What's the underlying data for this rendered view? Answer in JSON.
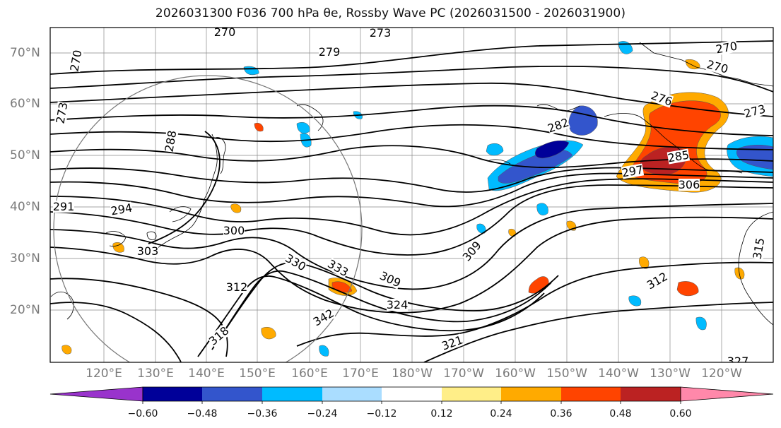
{
  "title": "2026031300 F036 700 hPa θe, Rossby Wave PC (2026031500 - 2026031900)",
  "map": {
    "lat_ticks": [
      "70°N",
      "60°N",
      "50°N",
      "40°N",
      "30°N",
      "20°N"
    ],
    "lon_ticks": [
      "120°E",
      "130°E",
      "140°E",
      "150°E",
      "160°E",
      "170°E",
      "180°W",
      "170°W",
      "160°W",
      "150°W",
      "140°W",
      "130°W",
      "120°W"
    ],
    "contour_labels": [
      "270",
      "273",
      "270",
      "279",
      "270",
      "270",
      "276",
      "273",
      "273",
      "288",
      "282",
      "285",
      "291",
      "294",
      "297",
      "300",
      "303",
      "306",
      "309",
      "309",
      "312",
      "312",
      "315",
      "318",
      "321",
      "324",
      "327",
      "330",
      "333",
      "342"
    ]
  },
  "colorbar": {
    "colors": [
      "#9933cc",
      "#000099",
      "#3355cc",
      "#00bbff",
      "#aaddff",
      "#ffffff",
      "#ffee88",
      "#ffaa00",
      "#ff4400",
      "#bb2222",
      "#ff88aa"
    ],
    "tick_labels": [
      "−0.60",
      "−0.48",
      "−0.36",
      "−0.24",
      "−0.12",
      "0.12",
      "0.24",
      "0.36",
      "0.48",
      "0.60"
    ]
  },
  "chart_data": {
    "type": "heatmap",
    "title": "2026031300 F036 700 hPa θe, Rossby Wave PC (2026031500 - 2026031900)",
    "variable_contours": "700 hPa θe (K)",
    "variable_shaded": "Rossby Wave PC",
    "lon_range_deg_e": [
      112,
      245
    ],
    "lat_range": [
      10,
      75
    ],
    "levels": [
      -0.6,
      -0.48,
      -0.36,
      -0.24,
      -0.12,
      0.12,
      0.24,
      0.36,
      0.48,
      0.6
    ],
    "grid": true
  }
}
